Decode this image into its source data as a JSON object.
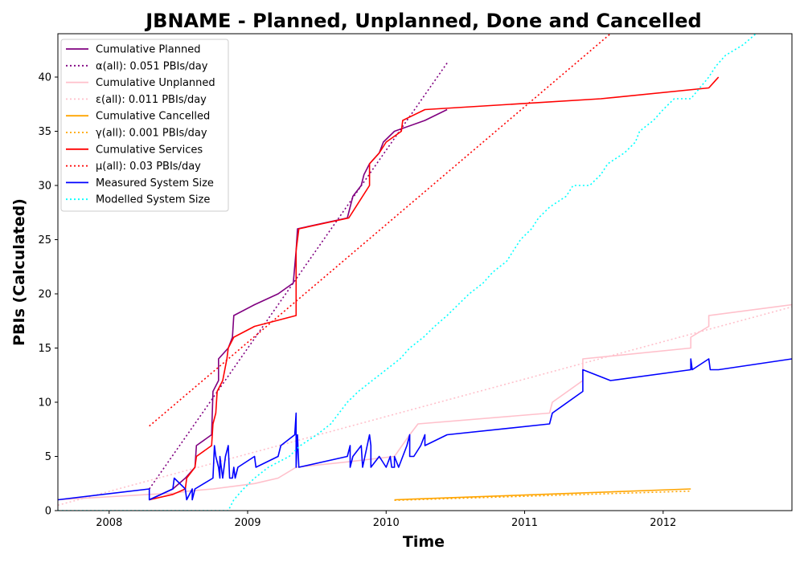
{
  "chart_data": {
    "type": "line",
    "title": "JBNAME - Planned, Unplanned, Done  and Cancelled",
    "xlabel": "Time",
    "ylabel": "PBIs (Calculated)",
    "xlim": [
      2007.63,
      2012.93
    ],
    "ylim": [
      0,
      44
    ],
    "x_ticks": [
      2008,
      2009,
      2010,
      2011,
      2012
    ],
    "x_tick_labels": [
      "2008",
      "2009",
      "2010",
      "2011",
      "2012"
    ],
    "y_ticks": [
      0,
      5,
      10,
      15,
      20,
      25,
      30,
      35,
      40
    ],
    "y_tick_labels": [
      "0",
      "5",
      "10",
      "15",
      "20",
      "25",
      "30",
      "35",
      "40"
    ],
    "grid": false,
    "legend_position": "top-left",
    "series": [
      {
        "name": "Cumulative Planned",
        "color": "#800080",
        "dash": "solid",
        "points": [
          [
            2008.29,
            1
          ],
          [
            2008.46,
            2
          ],
          [
            2008.55,
            3
          ],
          [
            2008.62,
            4
          ],
          [
            2008.63,
            6
          ],
          [
            2008.74,
            7
          ],
          [
            2008.75,
            11
          ],
          [
            2008.79,
            12
          ],
          [
            2008.79,
            14
          ],
          [
            2008.86,
            15
          ],
          [
            2008.89,
            16
          ],
          [
            2008.9,
            18
          ],
          [
            2009.05,
            19
          ],
          [
            2009.22,
            20
          ],
          [
            2009.33,
            21
          ],
          [
            2009.35,
            24
          ],
          [
            2009.36,
            26
          ],
          [
            2009.72,
            27
          ],
          [
            2009.76,
            29
          ],
          [
            2009.82,
            30
          ],
          [
            2009.84,
            31
          ],
          [
            2009.88,
            32
          ],
          [
            2009.95,
            33
          ],
          [
            2009.98,
            34
          ],
          [
            2010.06,
            35
          ],
          [
            2010.28,
            36
          ],
          [
            2010.44,
            37
          ]
        ]
      },
      {
        "name": "α(all): 0.051 PBIs/day",
        "color": "#800080",
        "dash": "dotted",
        "points": [
          [
            2008.29,
            2
          ],
          [
            2010.44,
            41.3
          ]
        ]
      },
      {
        "name": "Cumulative Unplanned",
        "color": "#ffc0cb",
        "dash": "solid",
        "points": [
          [
            2007.63,
            1
          ],
          [
            2008.29,
            1.5
          ],
          [
            2008.46,
            1.6
          ],
          [
            2008.57,
            1.8
          ],
          [
            2008.75,
            2
          ],
          [
            2009.05,
            2.5
          ],
          [
            2009.22,
            3
          ],
          [
            2009.35,
            4
          ],
          [
            2009.72,
            4.5
          ],
          [
            2010.06,
            5
          ],
          [
            2010.17,
            7
          ],
          [
            2010.23,
            8
          ],
          [
            2011.18,
            9
          ],
          [
            2011.2,
            10
          ],
          [
            2011.42,
            12
          ],
          [
            2011.42,
            14
          ],
          [
            2012.2,
            15
          ],
          [
            2012.2,
            16
          ],
          [
            2012.33,
            17
          ],
          [
            2012.33,
            18
          ],
          [
            2012.93,
            19
          ]
        ]
      },
      {
        "name": "ε(all): 0.011 PBIs/day",
        "color": "#ffc0cb",
        "dash": "dotted",
        "points": [
          [
            2007.63,
            0.5
          ],
          [
            2012.93,
            18.8
          ]
        ]
      },
      {
        "name": "Cumulative Cancelled",
        "color": "#ffa500",
        "dash": "solid",
        "points": [
          [
            2010.06,
            1
          ],
          [
            2012.2,
            2
          ]
        ]
      },
      {
        "name": "γ(all): 0.001 PBIs/day",
        "color": "#ffa500",
        "dash": "dotted",
        "points": [
          [
            2010.06,
            0.95
          ],
          [
            2012.2,
            1.8
          ]
        ]
      },
      {
        "name": "Cumulative Services",
        "color": "#ff0000",
        "dash": "solid",
        "points": [
          [
            2008.29,
            1
          ],
          [
            2008.46,
            1.5
          ],
          [
            2008.55,
            2
          ],
          [
            2008.56,
            3
          ],
          [
            2008.62,
            4
          ],
          [
            2008.63,
            5
          ],
          [
            2008.74,
            6
          ],
          [
            2008.75,
            8
          ],
          [
            2008.77,
            9
          ],
          [
            2008.78,
            11
          ],
          [
            2008.82,
            12
          ],
          [
            2008.85,
            14
          ],
          [
            2008.86,
            15
          ],
          [
            2008.9,
            16
          ],
          [
            2009.05,
            17
          ],
          [
            2009.35,
            18
          ],
          [
            2009.35,
            24
          ],
          [
            2009.37,
            26
          ],
          [
            2009.73,
            27
          ],
          [
            2009.88,
            30
          ],
          [
            2009.88,
            32
          ],
          [
            2009.95,
            33
          ],
          [
            2010.0,
            34
          ],
          [
            2010.11,
            35
          ],
          [
            2010.12,
            36
          ],
          [
            2010.28,
            37
          ],
          [
            2011.55,
            38
          ],
          [
            2012.33,
            39
          ],
          [
            2012.4,
            40
          ]
        ]
      },
      {
        "name": "μ(all): 0.03 PBIs/day",
        "color": "#ff0000",
        "dash": "dotted",
        "points": [
          [
            2008.29,
            7.8
          ],
          [
            2011.62,
            44
          ]
        ]
      },
      {
        "name": "Measured System Size",
        "color": "#0000ff",
        "dash": "solid",
        "points": [
          [
            2007.63,
            1
          ],
          [
            2008.29,
            2
          ],
          [
            2008.29,
            1
          ],
          [
            2008.46,
            2
          ],
          [
            2008.47,
            3
          ],
          [
            2008.55,
            2
          ],
          [
            2008.56,
            1
          ],
          [
            2008.6,
            2
          ],
          [
            2008.6,
            1
          ],
          [
            2008.62,
            2
          ],
          [
            2008.75,
            3
          ],
          [
            2008.76,
            6
          ],
          [
            2008.77,
            5
          ],
          [
            2008.79,
            4
          ],
          [
            2008.8,
            3
          ],
          [
            2008.8,
            5
          ],
          [
            2008.82,
            3
          ],
          [
            2008.84,
            5
          ],
          [
            2008.86,
            6
          ],
          [
            2008.87,
            3
          ],
          [
            2008.89,
            3
          ],
          [
            2008.9,
            4
          ],
          [
            2008.91,
            3
          ],
          [
            2008.93,
            4
          ],
          [
            2009.05,
            5
          ],
          [
            2009.06,
            4
          ],
          [
            2009.22,
            5
          ],
          [
            2009.24,
            6
          ],
          [
            2009.34,
            7
          ],
          [
            2009.35,
            9
          ],
          [
            2009.35,
            4
          ],
          [
            2009.36,
            7
          ],
          [
            2009.37,
            4
          ],
          [
            2009.72,
            5
          ],
          [
            2009.74,
            6
          ],
          [
            2009.74,
            4
          ],
          [
            2009.76,
            5
          ],
          [
            2009.82,
            6
          ],
          [
            2009.83,
            4
          ],
          [
            2009.88,
            7
          ],
          [
            2009.89,
            6
          ],
          [
            2009.89,
            4
          ],
          [
            2009.95,
            5
          ],
          [
            2010.0,
            4
          ],
          [
            2010.03,
            5
          ],
          [
            2010.04,
            4
          ],
          [
            2010.06,
            4
          ],
          [
            2010.06,
            5
          ],
          [
            2010.09,
            4
          ],
          [
            2010.15,
            6
          ],
          [
            2010.17,
            7
          ],
          [
            2010.17,
            5
          ],
          [
            2010.2,
            5
          ],
          [
            2010.25,
            6
          ],
          [
            2010.28,
            7
          ],
          [
            2010.28,
            6
          ],
          [
            2010.44,
            7
          ],
          [
            2011.18,
            8
          ],
          [
            2011.2,
            9
          ],
          [
            2011.42,
            11
          ],
          [
            2011.42,
            13
          ],
          [
            2011.62,
            12
          ],
          [
            2012.2,
            13
          ],
          [
            2012.2,
            14
          ],
          [
            2012.21,
            13
          ],
          [
            2012.33,
            14
          ],
          [
            2012.34,
            13
          ],
          [
            2012.4,
            13
          ],
          [
            2012.93,
            14
          ]
        ]
      },
      {
        "name": "Modelled System Size",
        "color": "#00ffff",
        "dash": "dotted",
        "points": [
          [
            2007.63,
            0
          ],
          [
            2008.86,
            0
          ],
          [
            2008.9,
            1
          ],
          [
            2008.97,
            2
          ],
          [
            2009.05,
            3
          ],
          [
            2009.15,
            4
          ],
          [
            2009.3,
            5
          ],
          [
            2009.38,
            6
          ],
          [
            2009.5,
            7
          ],
          [
            2009.6,
            8
          ],
          [
            2009.66,
            9
          ],
          [
            2009.72,
            10
          ],
          [
            2009.8,
            11
          ],
          [
            2009.9,
            12
          ],
          [
            2010.0,
            13
          ],
          [
            2010.1,
            14
          ],
          [
            2010.17,
            15
          ],
          [
            2010.27,
            16
          ],
          [
            2010.35,
            17
          ],
          [
            2010.44,
            18
          ],
          [
            2010.52,
            19
          ],
          [
            2010.6,
            20
          ],
          [
            2010.7,
            21
          ],
          [
            2010.77,
            22
          ],
          [
            2010.87,
            23
          ],
          [
            2010.92,
            24
          ],
          [
            2010.97,
            25
          ],
          [
            2011.05,
            26
          ],
          [
            2011.1,
            27
          ],
          [
            2011.18,
            28
          ],
          [
            2011.3,
            29
          ],
          [
            2011.35,
            30
          ],
          [
            2011.47,
            30
          ],
          [
            2011.55,
            31
          ],
          [
            2011.6,
            32
          ],
          [
            2011.72,
            33
          ],
          [
            2011.8,
            34
          ],
          [
            2011.83,
            35
          ],
          [
            2011.93,
            36
          ],
          [
            2012.0,
            37
          ],
          [
            2012.08,
            38
          ],
          [
            2012.2,
            38
          ],
          [
            2012.33,
            40
          ],
          [
            2012.38,
            41
          ],
          [
            2012.45,
            42
          ],
          [
            2012.58,
            43
          ],
          [
            2012.67,
            44
          ]
        ]
      }
    ]
  }
}
